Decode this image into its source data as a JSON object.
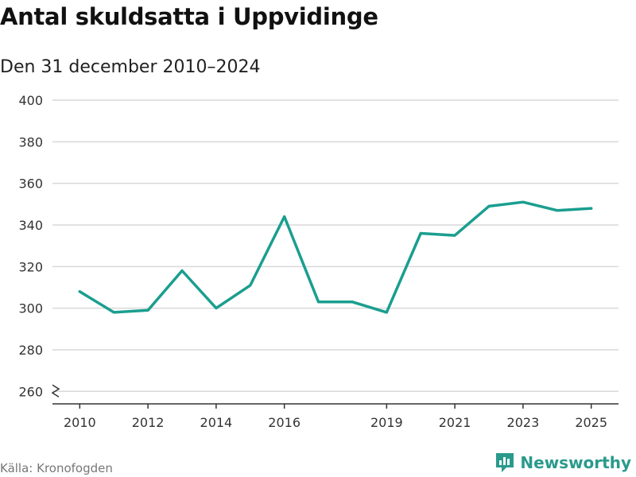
{
  "title": "Antal skuldsatta i Uppvidinge",
  "subtitle": "Den 31 december 2010–2024",
  "source": "Källa: Kronofogden",
  "brand": {
    "name": "Newsworthy",
    "icon": "newsworthy-logo-icon",
    "color": "#2a9a8c"
  },
  "chart_data": {
    "type": "line",
    "title": "Antal skuldsatta i Uppvidinge",
    "subtitle": "Den 31 december 2010–2024",
    "xlabel": "",
    "ylabel": "",
    "x": [
      2010,
      2011,
      2012,
      2013,
      2014,
      2015,
      2016,
      2017,
      2018,
      2019,
      2020,
      2021,
      2022,
      2023,
      2024,
      2025
    ],
    "values": [
      308,
      298,
      299,
      318,
      300,
      311,
      344,
      303,
      303,
      298,
      336,
      335,
      349,
      351,
      347,
      348
    ],
    "x_ticks": [
      2010,
      2012,
      2014,
      2016,
      2019,
      2021,
      2023,
      2025
    ],
    "y_ticks": [
      260,
      280,
      300,
      320,
      340,
      360,
      380,
      400
    ],
    "ylim": [
      254,
      400
    ],
    "xlim": [
      2009.2,
      2025.8
    ],
    "grid": true,
    "axis_break": true,
    "line_color": "#1a9e8f",
    "grid_color": "#d9d9d9"
  }
}
